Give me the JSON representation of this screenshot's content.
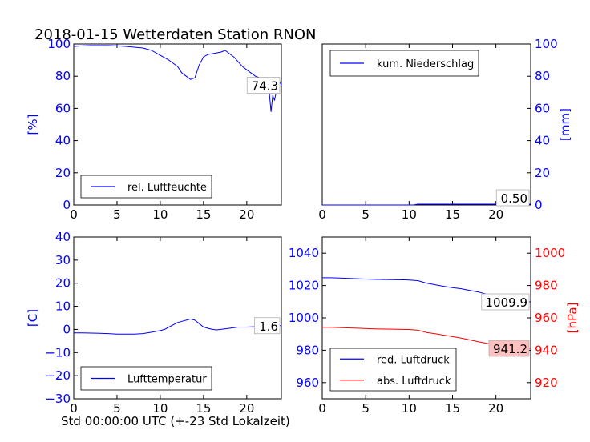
{
  "title": "2018-01-15 Wetterdaten Station RNON",
  "xlabel": "Std 00:00:00 UTC (+-23 Std Lokalzeit)",
  "colors": {
    "blue": "#0000ff",
    "red": "#ff0000",
    "axis": "#000000",
    "value_box_red": "#ffc0c0"
  },
  "chart_data": [
    {
      "id": "humidity",
      "type": "line",
      "title": "",
      "xlabel": "",
      "ylabel": "[%]",
      "xlim": [
        0,
        24
      ],
      "ylim": [
        0,
        100
      ],
      "xticks": [
        0,
        5,
        10,
        15,
        20
      ],
      "yticks": [
        0,
        20,
        40,
        60,
        80,
        100
      ],
      "legend": "lower-left",
      "series": [
        {
          "name": "rel. Luftfeuchte",
          "color": "#0000ff",
          "x": [
            0,
            1,
            2,
            3,
            4,
            5,
            6,
            7,
            8,
            9,
            10,
            11,
            11.5,
            12,
            12.5,
            13,
            13.5,
            14,
            14.5,
            15,
            15.5,
            16,
            16.5,
            17,
            17.5,
            18,
            18.5,
            19,
            19.5,
            20,
            20.5,
            21,
            21.5,
            22,
            22.3,
            22.6,
            22.8,
            23,
            23.2,
            23.4,
            23.6,
            23.8,
            24
          ],
          "y": [
            98.5,
            98.8,
            99,
            99,
            99,
            98.8,
            98.5,
            98,
            97.5,
            96,
            93,
            90,
            88,
            86,
            82,
            80,
            78,
            79,
            87,
            92,
            93.5,
            94,
            94.5,
            95,
            96,
            94,
            92,
            89,
            86,
            84,
            82,
            80,
            79,
            76,
            74,
            70,
            58,
            68,
            65,
            70,
            74,
            77,
            74.3
          ]
        }
      ],
      "value_box": "74.3"
    },
    {
      "id": "precipitation",
      "type": "line",
      "title": "",
      "xlabel": "",
      "ylabel": "[mm]",
      "xlim": [
        0,
        24
      ],
      "ylim": [
        0,
        100
      ],
      "xticks": [
        0,
        5,
        10,
        15,
        20
      ],
      "yticks": [
        0,
        20,
        40,
        60,
        80,
        100
      ],
      "legend": "top-left",
      "series": [
        {
          "name": "kum. Niederschlag",
          "color": "#0000ff",
          "x": [
            0,
            10.5,
            11,
            24
          ],
          "y": [
            0,
            0,
            0.5,
            0.5
          ]
        }
      ],
      "value_box": "0.50"
    },
    {
      "id": "temperature",
      "type": "line",
      "title": "",
      "xlabel": "",
      "ylabel": "[C]",
      "xlim": [
        0,
        24
      ],
      "ylim": [
        -30,
        40
      ],
      "xticks": [
        0,
        5,
        10,
        15,
        20
      ],
      "yticks": [
        -30,
        -20,
        -10,
        0,
        10,
        20,
        30,
        40
      ],
      "legend": "lower-left",
      "series": [
        {
          "name": "Lufttemperatur",
          "color": "#0000ff",
          "x": [
            0,
            1,
            2,
            3,
            4,
            5,
            6,
            7,
            8,
            9,
            10,
            10.5,
            11,
            11.5,
            12,
            12.5,
            13,
            13.5,
            14,
            14.5,
            15,
            15.5,
            16,
            16.5,
            17,
            18,
            19,
            20,
            21,
            22,
            23,
            24
          ],
          "y": [
            -1.5,
            -1.5,
            -1.6,
            -1.7,
            -1.8,
            -2,
            -2,
            -2,
            -1.8,
            -1.2,
            -0.5,
            0,
            1,
            2,
            3,
            3.5,
            4,
            4.5,
            4,
            2.5,
            1,
            0.5,
            0,
            -0.2,
            0,
            0.5,
            1,
            1,
            1.2,
            1.5,
            1.6,
            1.6
          ]
        }
      ],
      "value_box": "1.6"
    },
    {
      "id": "pressure",
      "type": "line",
      "title": "",
      "xlabel": "",
      "ylabel_right": "[hPa]",
      "xlim": [
        0,
        24
      ],
      "ylim_left": [
        950,
        1050
      ],
      "ylim_right": [
        910,
        1010
      ],
      "xticks": [
        0,
        5,
        10,
        15,
        20
      ],
      "yticks_left": [
        960,
        980,
        1000,
        1020,
        1040
      ],
      "yticks_right": [
        920,
        940,
        960,
        980,
        1000
      ],
      "legend": "lower-left",
      "series": [
        {
          "name": "red. Luftdruck",
          "color": "#0000ff",
          "axis": "left",
          "x": [
            0,
            1,
            2,
            4,
            6,
            8,
            10,
            11,
            12,
            13,
            14,
            15,
            16,
            17,
            18,
            19,
            20,
            21,
            22,
            23,
            24
          ],
          "y": [
            1024.8,
            1024.8,
            1024.6,
            1024.2,
            1023.8,
            1023.6,
            1023.4,
            1023,
            1021.5,
            1020.5,
            1019.5,
            1018.7,
            1018,
            1017,
            1016,
            1014.5,
            1013,
            1011.5,
            1010.5,
            1010,
            1009.9
          ]
        },
        {
          "name": "abs. Luftdruck",
          "color": "#ff0000",
          "axis": "right",
          "x": [
            0,
            1,
            2,
            4,
            6,
            8,
            10,
            11,
            12,
            13,
            14,
            15,
            16,
            17,
            18,
            19,
            20,
            21,
            22,
            23,
            24
          ],
          "y": [
            954.2,
            954.2,
            954,
            953.6,
            953.2,
            953,
            952.8,
            952.4,
            951,
            950.2,
            949.3,
            948.4,
            947.5,
            946.4,
            945.2,
            944.2,
            943.2,
            942.4,
            941.9,
            941.4,
            941.2
          ]
        }
      ],
      "value_box_left": "1009.9",
      "value_box_right": "941.2"
    }
  ]
}
